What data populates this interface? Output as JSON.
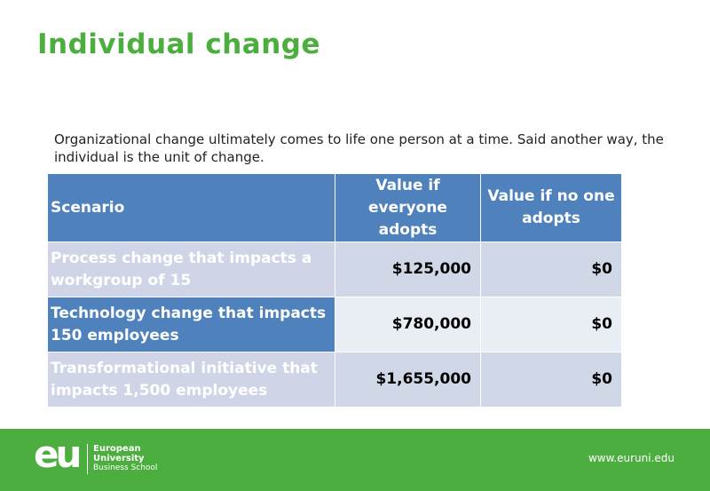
{
  "header": {
    "title": "Individual change"
  },
  "intro": "Organizational change ultimately comes to life one person at a time. Said another way, the individual is the unit of change.",
  "table": {
    "columns": [
      "Scenario",
      "Value if everyone adopts",
      "Value if no one adopts"
    ],
    "rows": [
      [
        "Process change that impacts a workgroup of 15",
        "$125,000",
        "$0"
      ],
      [
        "Technology change that impacts 150 employees",
        "$780,000",
        "$0"
      ],
      [
        "Transformational initiative that impacts 1,500 employees",
        "$1,655,000",
        "$0"
      ]
    ]
  },
  "footer": {
    "logo_mark": "eu",
    "logo_lines": [
      "European",
      "University",
      "Business School"
    ],
    "url": "www.euruni.edu"
  }
}
